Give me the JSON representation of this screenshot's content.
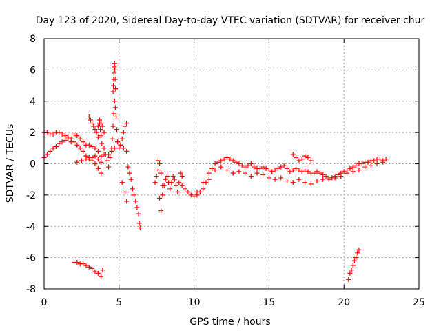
{
  "chart_data": {
    "type": "scatter",
    "title": "Day 123 of 2020, Sidereal Day-to-day VTEC variation (SDTVAR) for receiver chur",
    "xlabel": "GPS time / hours",
    "ylabel": "SDTVAR / TECUs",
    "xlim": [
      0,
      25
    ],
    "ylim": [
      -8,
      8
    ],
    "xticks": [
      0,
      5,
      10,
      15,
      20,
      25
    ],
    "yticks": [
      -8,
      -6,
      -4,
      -2,
      0,
      2,
      4,
      6,
      8
    ],
    "grid": true,
    "marker": "+",
    "series": [
      {
        "name": "SDTVAR",
        "color": "#ff0000",
        "x": [
          0.0,
          0.2,
          0.4,
          0.6,
          0.8,
          1.0,
          1.2,
          1.4,
          1.6,
          1.8,
          2.0,
          2.2,
          2.4,
          2.6,
          2.8,
          3.0,
          3.2,
          3.4,
          3.6,
          3.8,
          0.0,
          0.2,
          0.4,
          0.6,
          0.8,
          1.0,
          1.2,
          1.4,
          1.6,
          1.8,
          2.0,
          2.2,
          2.4,
          2.6,
          2.8,
          3.0,
          3.2,
          3.4,
          3.6,
          3.8,
          4.0,
          2.2,
          2.5,
          2.8,
          3.0,
          3.2,
          3.4,
          3.6,
          3.8,
          3.6,
          3.7,
          3.75,
          3.8,
          3.85,
          3.0,
          3.1,
          3.2,
          3.3,
          3.4,
          3.5,
          3.6,
          3.7,
          3.8,
          3.9,
          4.0,
          4.0,
          4.1,
          4.2,
          4.3,
          4.4,
          4.5,
          4.55,
          4.6,
          4.65,
          4.7,
          4.75,
          4.8,
          4.85,
          4.9,
          5.0,
          5.1,
          5.2,
          5.3,
          5.4,
          5.5,
          4.6,
          4.62,
          4.64,
          4.66,
          4.68,
          4.7,
          4.72,
          4.74,
          4.76,
          4.3,
          4.5,
          4.7,
          4.9,
          5.1,
          5.3,
          5.5,
          5.6,
          5.7,
          5.8,
          5.9,
          6.0,
          6.1,
          6.2,
          6.3,
          6.35,
          6.4,
          5.2,
          5.4,
          5.5,
          7.4,
          7.5,
          7.6,
          7.7,
          7.8,
          7.9,
          8.0,
          8.1,
          8.2,
          8.3,
          8.4,
          8.5,
          8.6,
          8.7,
          8.8,
          8.9,
          9.0,
          9.1,
          9.2,
          7.6,
          7.7,
          7.8,
          7.9,
          9.2,
          9.4,
          9.6,
          9.8,
          10.0,
          10.2,
          10.4,
          10.6,
          10.8,
          11.0,
          11.2,
          11.4,
          11.6,
          11.8,
          12.0,
          12.2,
          12.4,
          12.6,
          12.8,
          13.0,
          13.2,
          13.4,
          13.6,
          13.8,
          14.0,
          14.2,
          14.4,
          14.6,
          14.8,
          15.0,
          15.2,
          15.4,
          15.6,
          15.8,
          16.0,
          16.2,
          16.4,
          16.6,
          16.8,
          17.0,
          17.2,
          17.4,
          17.6,
          17.8,
          18.0,
          18.2,
          18.4,
          18.6,
          18.8,
          19.0,
          19.2,
          19.4,
          19.6,
          19.8,
          20.0,
          20.2,
          20.4,
          20.6,
          20.8,
          21.0,
          21.2,
          21.4,
          21.6,
          21.8,
          22.0,
          22.2,
          22.4,
          22.6,
          22.8,
          10.2,
          10.6,
          11.0,
          11.4,
          11.8,
          12.2,
          12.6,
          13.0,
          13.4,
          13.8,
          14.2,
          14.6,
          15.0,
          15.4,
          15.8,
          16.2,
          16.6,
          17.0,
          17.4,
          17.8,
          18.2,
          18.6,
          19.0,
          19.4,
          19.8,
          20.2,
          20.6,
          21.0,
          21.4,
          21.8,
          22.2,
          22.6,
          16.6,
          16.8,
          17.0,
          17.2,
          17.4,
          17.6,
          17.8,
          2.0,
          2.2,
          2.4,
          2.6,
          2.8,
          3.0,
          3.2,
          3.4,
          3.6,
          3.8,
          3.9,
          20.3,
          20.4,
          20.5,
          20.6,
          20.7,
          20.8,
          20.9,
          21.0
        ],
        "y": [
          0.4,
          0.6,
          0.8,
          1.0,
          1.1,
          1.3,
          1.4,
          1.5,
          1.6,
          1.6,
          1.4,
          1.2,
          1.0,
          0.8,
          0.5,
          0.3,
          0.2,
          0.0,
          -0.3,
          -0.6,
          2.0,
          2.0,
          1.9,
          1.9,
          2.0,
          2.0,
          1.9,
          1.8,
          1.7,
          1.4,
          1.9,
          1.8,
          1.6,
          1.4,
          1.2,
          1.2,
          1.1,
          1.0,
          0.8,
          0.5,
          0.6,
          0.1,
          0.2,
          0.3,
          0.4,
          0.4,
          0.5,
          0.3,
          0.1,
          1.7,
          2.6,
          2.2,
          1.8,
          1.3,
          3.0,
          2.8,
          2.6,
          2.4,
          2.2,
          2.0,
          2.4,
          2.8,
          2.6,
          2.4,
          2.0,
          1.0,
          0.6,
          0.2,
          -0.2,
          0.4,
          1.0,
          1.6,
          2.4,
          3.2,
          4.0,
          3.6,
          3.0,
          2.2,
          1.4,
          1.0,
          1.2,
          1.6,
          2.0,
          2.4,
          2.6,
          4.6,
          5.0,
          5.4,
          5.8,
          6.2,
          6.4,
          6.0,
          5.4,
          4.8,
          0.6,
          0.8,
          1.0,
          1.4,
          1.2,
          1.0,
          0.8,
          -0.2,
          -0.6,
          -1.0,
          -1.6,
          -2.0,
          -2.4,
          -2.8,
          -3.2,
          -3.8,
          -4.1,
          -1.2,
          -1.8,
          -2.4,
          -1.2,
          -0.8,
          -0.4,
          -2.2,
          -3.0,
          -2.0,
          -1.4,
          -1.0,
          -0.8,
          -1.2,
          -1.6,
          -1.2,
          -0.8,
          -1.0,
          -1.4,
          -1.8,
          -1.2,
          -0.6,
          -0.8,
          0.2,
          0.0,
          -0.6,
          -1.4,
          -1.4,
          -1.6,
          -1.8,
          -2.0,
          -2.1,
          -2.0,
          -1.8,
          -1.6,
          -1.2,
          -0.6,
          -0.3,
          0.0,
          0.1,
          0.2,
          0.3,
          0.4,
          0.3,
          0.2,
          0.1,
          0.0,
          -0.1,
          -0.2,
          -0.1,
          0.0,
          -0.2,
          -0.3,
          -0.3,
          -0.2,
          -0.3,
          -0.4,
          -0.5,
          -0.4,
          -0.3,
          -0.2,
          -0.1,
          -0.3,
          -0.5,
          -0.4,
          -0.3,
          -0.4,
          -0.5,
          -0.4,
          -0.5,
          -0.6,
          -0.6,
          -0.5,
          -0.6,
          -0.7,
          -0.8,
          -0.9,
          -0.9,
          -0.8,
          -0.7,
          -0.6,
          -0.5,
          -0.4,
          -0.3,
          -0.2,
          -0.1,
          0.0,
          0.0,
          0.1,
          0.1,
          0.2,
          0.2,
          0.3,
          0.3,
          0.2,
          0.3,
          -1.8,
          -1.2,
          -1.0,
          -0.4,
          -0.2,
          -0.4,
          -0.6,
          -0.5,
          -0.6,
          -0.8,
          -0.6,
          -0.7,
          -0.9,
          -1.0,
          -0.9,
          -1.1,
          -1.2,
          -1.0,
          -1.2,
          -1.3,
          -1.1,
          -1.0,
          -1.0,
          -0.9,
          -0.8,
          -0.6,
          -0.5,
          -0.4,
          -0.2,
          -0.1,
          0.0,
          0.1,
          0.6,
          0.4,
          0.2,
          0.3,
          0.5,
          0.4,
          0.2,
          -6.3,
          -6.3,
          -6.4,
          -6.4,
          -6.5,
          -6.6,
          -6.7,
          -6.9,
          -7.0,
          -7.2,
          -6.8,
          -7.4,
          -7.0,
          -6.8,
          -6.5,
          -6.2,
          -6.0,
          -5.7,
          -5.5
        ]
      }
    ]
  }
}
